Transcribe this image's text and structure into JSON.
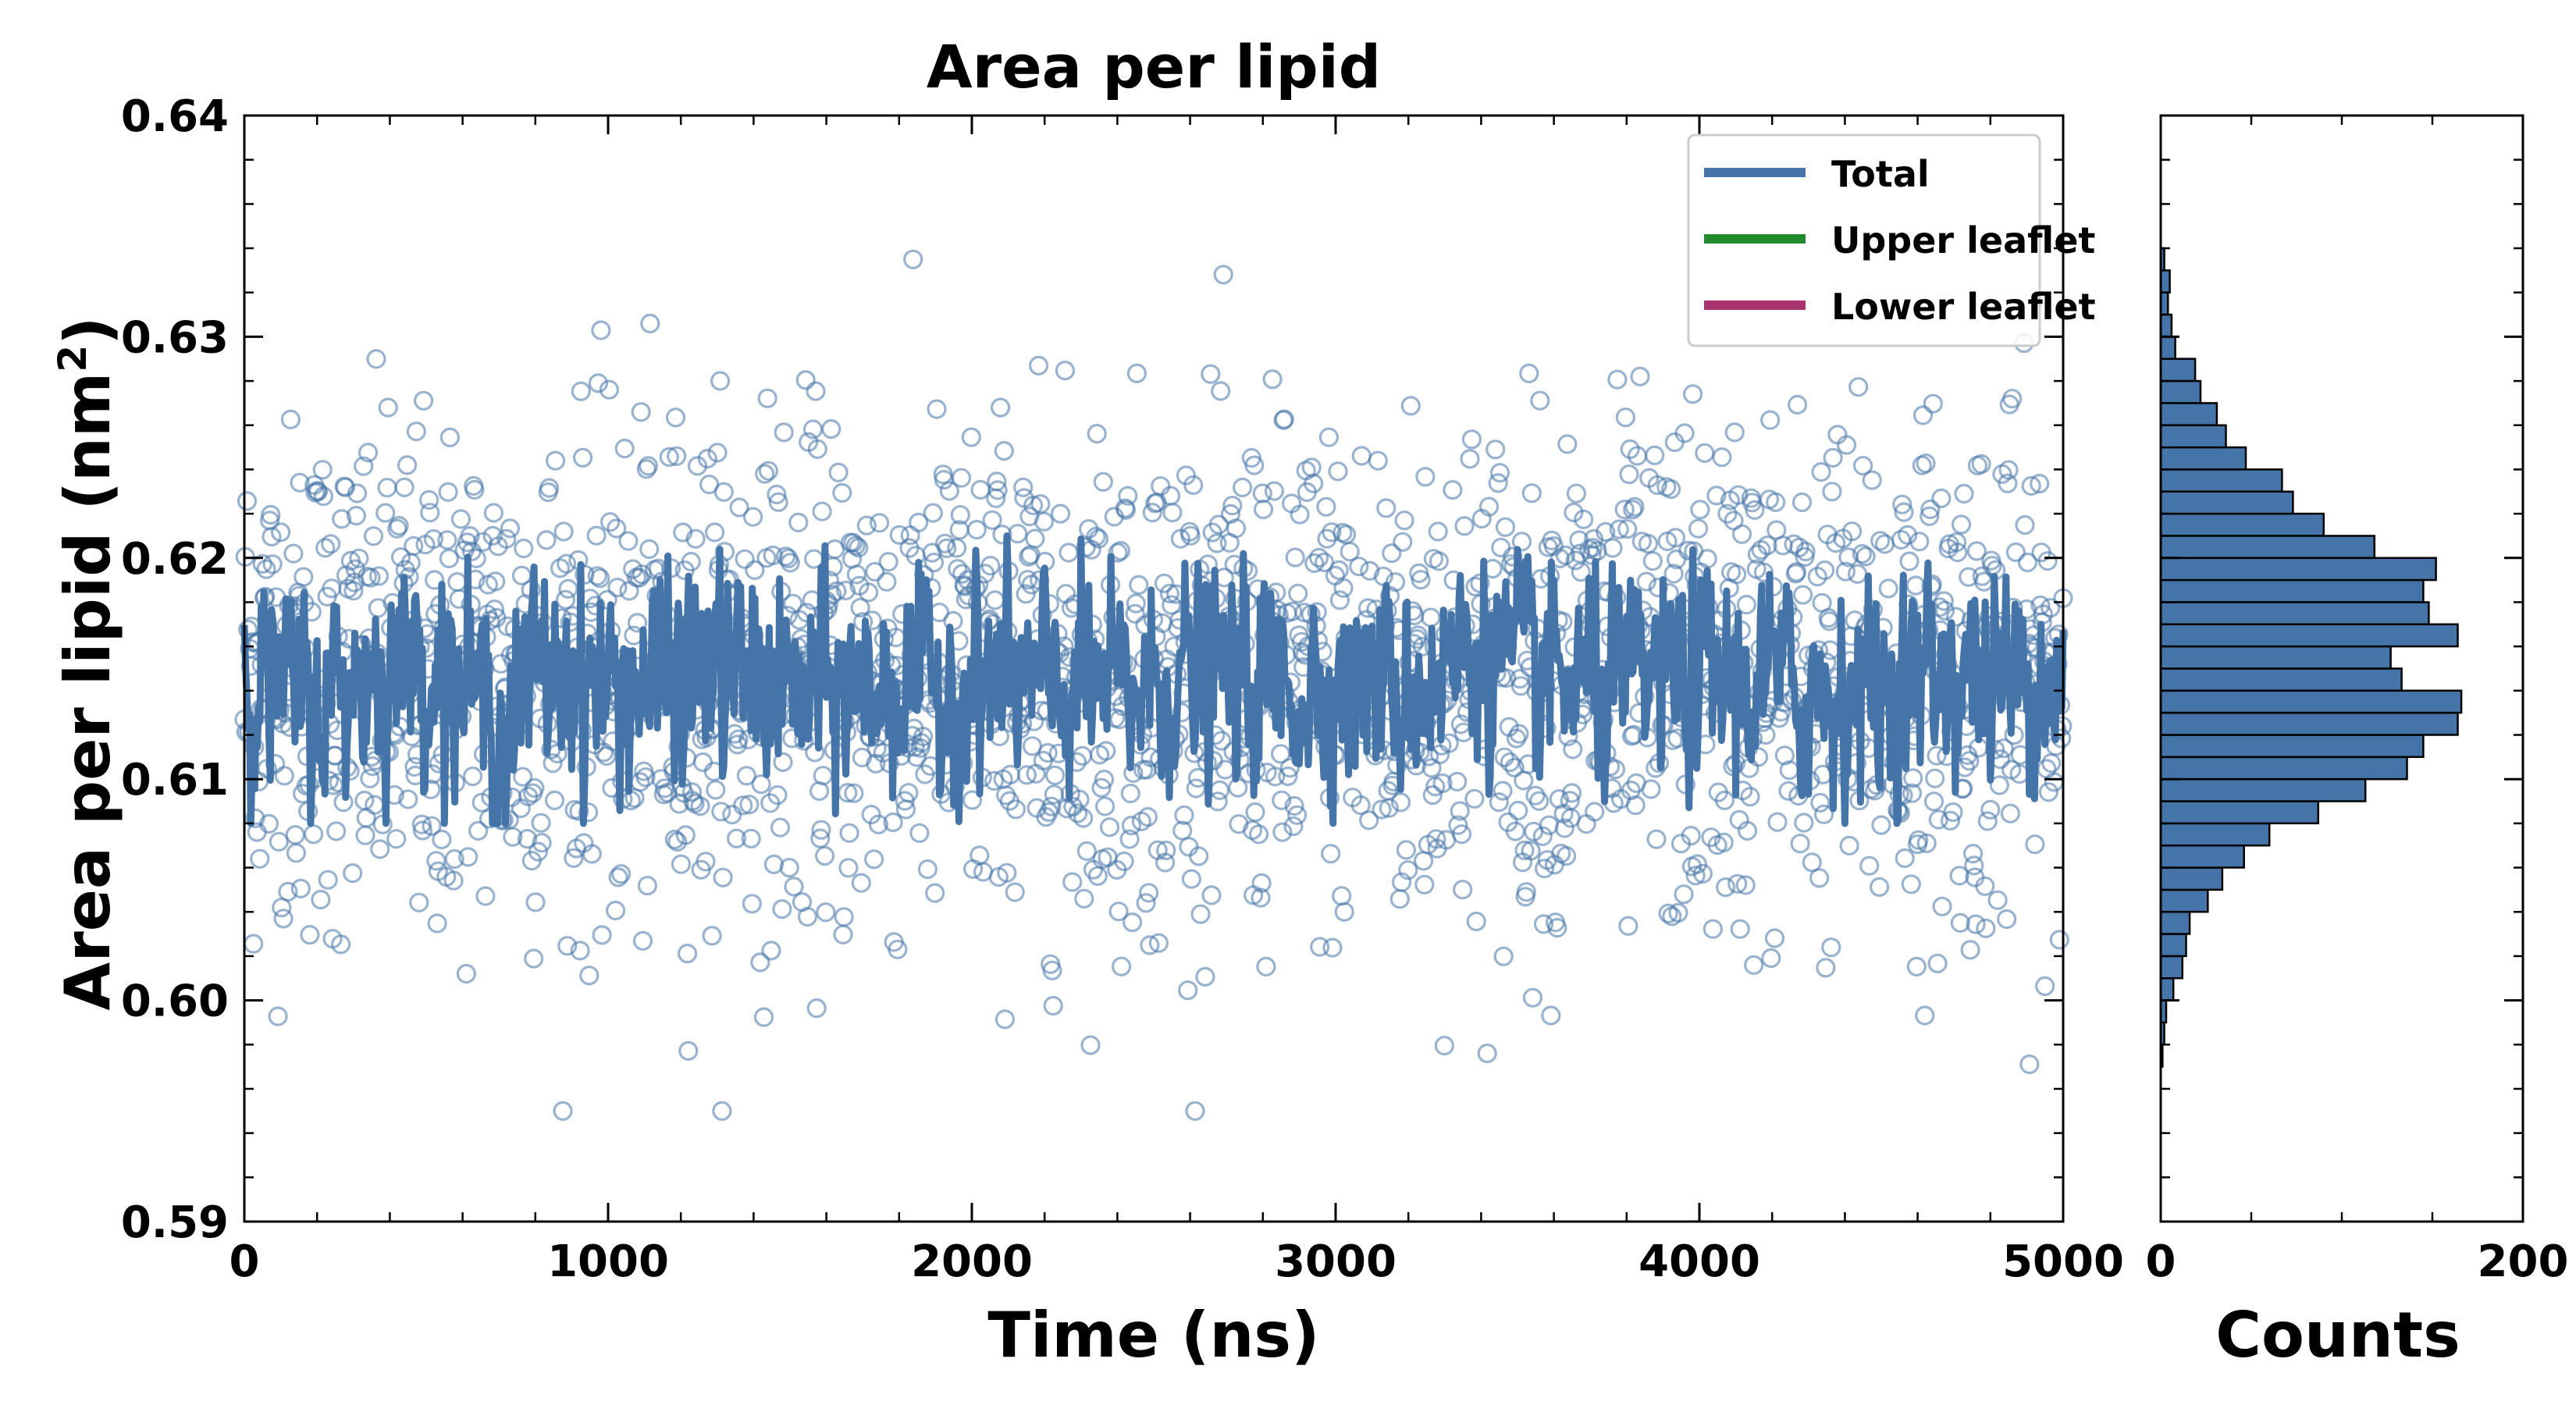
{
  "chart_data": [
    {
      "type": "scatter",
      "title": "Area per lipid",
      "xlabel": "Time (ns)",
      "ylabel": "Area per lipid (nm",
      "ylabel_superscript": "2",
      "ylabel_suffix": ")",
      "xlim": [
        0,
        5000
      ],
      "ylim": [
        0.59,
        0.64
      ],
      "xticks": [
        0,
        1000,
        2000,
        3000,
        4000,
        5000
      ],
      "xtick_labels": [
        "0",
        "1000",
        "2000",
        "3000",
        "4000",
        "5000"
      ],
      "yticks": [
        0.59,
        0.6,
        0.61,
        0.62,
        0.63,
        0.64
      ],
      "ytick_labels": [
        "0.59",
        "0.60",
        "0.61",
        "0.62",
        "0.63",
        "0.64"
      ],
      "legend": {
        "position": "top-right",
        "entries": [
          {
            "label": "Total",
            "color": "#4574a8"
          },
          {
            "label": "Upper leaflet",
            "color": "#228b2e"
          },
          {
            "label": "Lower leaflet",
            "color": "#a8326e"
          }
        ]
      },
      "series": [
        {
          "name": "Total",
          "kind": "scatter_with_running_average",
          "marker": "open-circle",
          "color": "#4574a8",
          "scatter_count": 2000,
          "scatter_y_range": [
            0.595,
            0.6345
          ],
          "scatter_mean": 0.6145,
          "scatter_std": 0.0058,
          "running_average": {
            "x": [
              0,
              100,
              200,
              300,
              400,
              500,
              600,
              700,
              800,
              900,
              1000,
              1100,
              1200,
              1300,
              1400,
              1500,
              1600,
              1700,
              1800,
              1900,
              2000,
              2100,
              2200,
              2300,
              2400,
              2500,
              2600,
              2700,
              2800,
              2900,
              3000,
              3100,
              3200,
              3300,
              3400,
              3500,
              3600,
              3700,
              3800,
              3900,
              4000,
              4100,
              4200,
              4300,
              4400,
              4500,
              4600,
              4700,
              4800,
              4900,
              5000
            ],
            "y": [
              0.615,
              0.614,
              0.6135,
              0.6145,
              0.615,
              0.6155,
              0.6145,
              0.612,
              0.615,
              0.6148,
              0.614,
              0.6142,
              0.6148,
              0.615,
              0.6145,
              0.614,
              0.6138,
              0.6142,
              0.6145,
              0.614,
              0.6142,
              0.6145,
              0.614,
              0.6143,
              0.614,
              0.6142,
              0.6148,
              0.6145,
              0.6146,
              0.614,
              0.6145,
              0.6142,
              0.614,
              0.615,
              0.616,
              0.615,
              0.6145,
              0.614,
              0.6142,
              0.6145,
              0.6148,
              0.6142,
              0.6145,
              0.6138,
              0.6142,
              0.614,
              0.6145,
              0.615,
              0.6145,
              0.615,
              0.615
            ],
            "fluctuation_range": [
              0.608,
              0.621
            ]
          }
        },
        {
          "name": "Upper leaflet",
          "color": "#228b2e"
        },
        {
          "name": "Lower leaflet",
          "color": "#a8326e"
        }
      ]
    },
    {
      "type": "bar",
      "orientation": "horizontal",
      "title": "",
      "xlabel": "Counts",
      "ylabel": "",
      "xlim": [
        0,
        200
      ],
      "xticks": [
        0,
        200
      ],
      "xtick_labels": [
        "0",
        "200"
      ],
      "ylim": [
        0.59,
        0.64
      ],
      "bin_width": 0.001,
      "bar_color": "#4574a8",
      "edge_color": "#000000",
      "bins": [
        0.597,
        0.598,
        0.599,
        0.6,
        0.601,
        0.602,
        0.603,
        0.604,
        0.605,
        0.606,
        0.607,
        0.608,
        0.609,
        0.61,
        0.611,
        0.612,
        0.613,
        0.614,
        0.615,
        0.616,
        0.617,
        0.618,
        0.619,
        0.62,
        0.621,
        0.622,
        0.623,
        0.624,
        0.625,
        0.626,
        0.627,
        0.628,
        0.629,
        0.63,
        0.631,
        0.632,
        0.633
      ],
      "counts": [
        1,
        2,
        3,
        7,
        12,
        14,
        16,
        26,
        34,
        46,
        60,
        87,
        113,
        136,
        145,
        164,
        166,
        133,
        127,
        164,
        148,
        145,
        152,
        118,
        90,
        73,
        67,
        47,
        36,
        31,
        22,
        19,
        8,
        6,
        4,
        5,
        2
      ]
    }
  ]
}
